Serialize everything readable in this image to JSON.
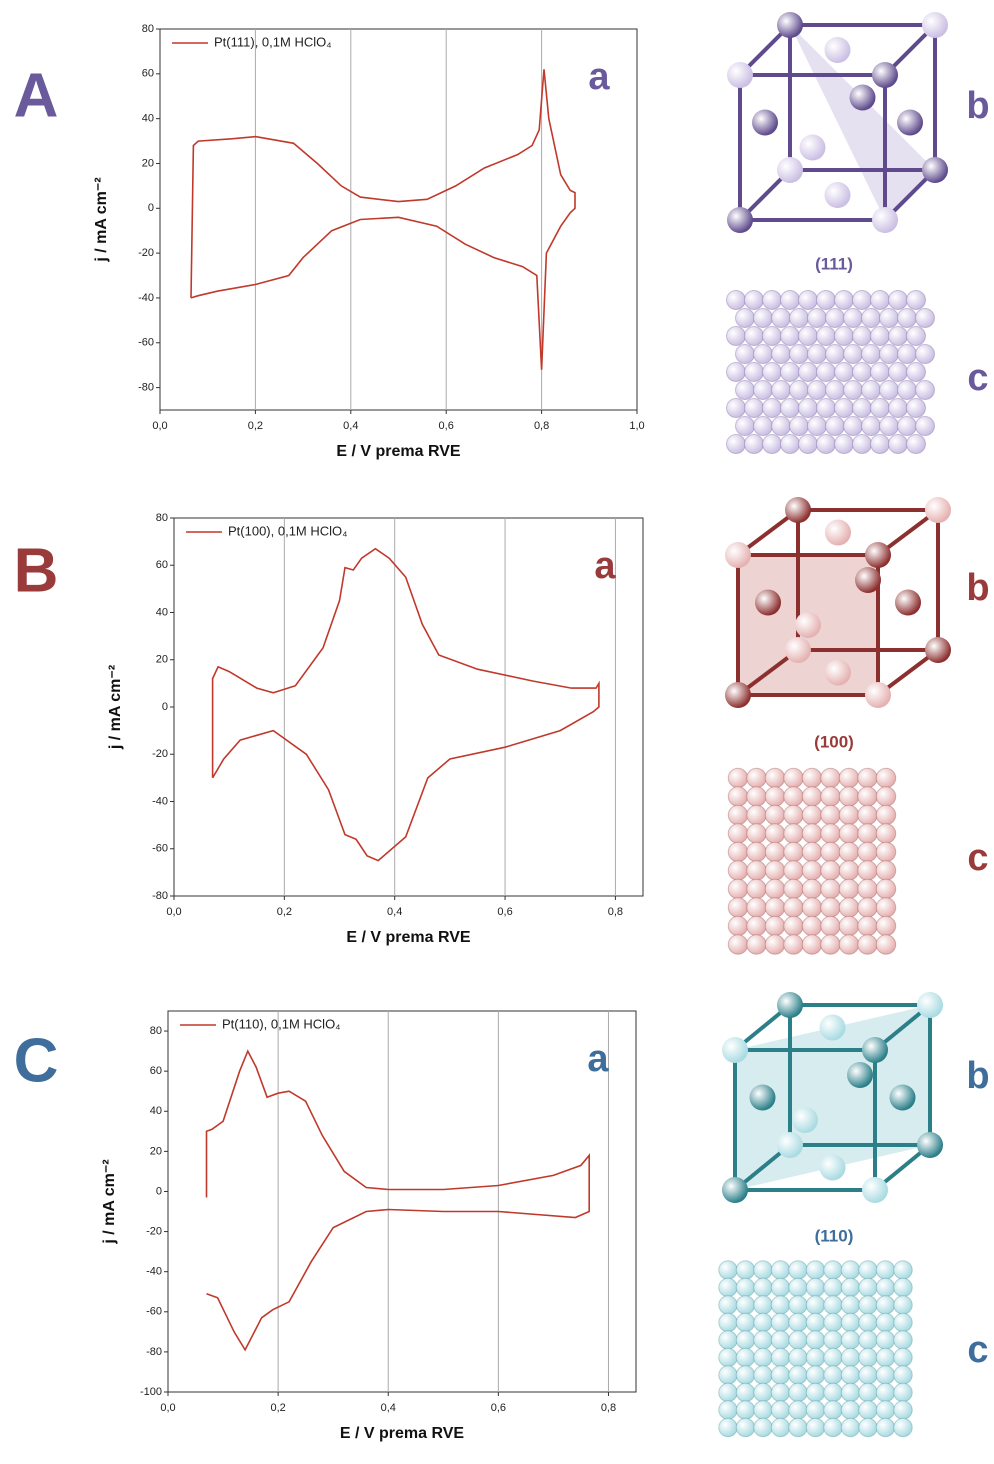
{
  "chart_data": [
    {
      "type": "line",
      "annotation": "a",
      "xlabel": "E / V prema RVE",
      "ylabel": "j / mA cm⁻²",
      "legend": "upper left",
      "grid": "x",
      "xlim": [
        0,
        1
      ],
      "ylim": [
        -90,
        80
      ],
      "xticks": [
        {
          "value": 0,
          "label": "0,0"
        },
        {
          "value": 0.2,
          "label": "0,2"
        },
        {
          "value": 0.4,
          "label": "0,4"
        },
        {
          "value": 0.6,
          "label": "0,6"
        },
        {
          "value": 0.8,
          "label": "0,8"
        },
        {
          "value": 1,
          "label": "1,0"
        }
      ],
      "yticks": [
        -80,
        -60,
        -40,
        -20,
        0,
        20,
        40,
        60,
        80
      ],
      "x": [
        0.065,
        0.07,
        0.08,
        0.15,
        0.2,
        0.28,
        0.33,
        0.38,
        0.42,
        0.5,
        0.56,
        0.62,
        0.68,
        0.75,
        0.78,
        0.795,
        0.805,
        0.815,
        0.84,
        0.86,
        0.87,
        0.87,
        0.86,
        0.84,
        0.81,
        0.8,
        0.79,
        0.76,
        0.7,
        0.64,
        0.58,
        0.5,
        0.42,
        0.36,
        0.3,
        0.27,
        0.2,
        0.12,
        0.08,
        0.065
      ],
      "series": [
        {
          "name": "Pt(111), 0,1M HClO₄",
          "color": "#c0392b",
          "values": [
            -40,
            28,
            30,
            31,
            32,
            29,
            20,
            10,
            5,
            3,
            4,
            10,
            18,
            24,
            28,
            35,
            62,
            40,
            15,
            8,
            7,
            0,
            -2,
            -8,
            -20,
            -72,
            -30,
            -26,
            -22,
            -16,
            -8,
            -4,
            -5,
            -10,
            -22,
            -30,
            -34,
            -37,
            -39,
            -40
          ]
        }
      ]
    },
    {
      "type": "line",
      "annotation": "a",
      "xlabel": "E / V prema RVE",
      "ylabel": "j / mA cm⁻²",
      "legend": "upper left",
      "grid": "x",
      "xlim": [
        0,
        0.85
      ],
      "ylim": [
        -80,
        80
      ],
      "xticks": [
        {
          "value": 0,
          "label": "0,0"
        },
        {
          "value": 0.2,
          "label": "0,2"
        },
        {
          "value": 0.4,
          "label": "0,4"
        },
        {
          "value": 0.6,
          "label": "0,6"
        },
        {
          "value": 0.8,
          "label": "0,8"
        }
      ],
      "yticks": [
        -80,
        -60,
        -40,
        -20,
        0,
        20,
        40,
        60,
        80
      ],
      "x": [
        0.07,
        0.07,
        0.08,
        0.1,
        0.15,
        0.18,
        0.22,
        0.27,
        0.3,
        0.31,
        0.325,
        0.34,
        0.365,
        0.39,
        0.42,
        0.45,
        0.48,
        0.55,
        0.65,
        0.72,
        0.765,
        0.77,
        0.77,
        0.76,
        0.7,
        0.6,
        0.5,
        0.46,
        0.42,
        0.37,
        0.35,
        0.33,
        0.31,
        0.28,
        0.24,
        0.18,
        0.12,
        0.09,
        0.07
      ],
      "series": [
        {
          "name": "Pt(100), 0,1M HClO₄",
          "color": "#c0392b",
          "values": [
            -30,
            12,
            17,
            15,
            8,
            6,
            9,
            25,
            45,
            59,
            58,
            63,
            67,
            63,
            55,
            35,
            22,
            16,
            11,
            8,
            8,
            10,
            0,
            -2,
            -10,
            -17,
            -22,
            -30,
            -55,
            -65,
            -63,
            -56,
            -54,
            -35,
            -20,
            -10,
            -14,
            -22,
            -30
          ]
        }
      ]
    },
    {
      "type": "line",
      "annotation": "a",
      "xlabel": "E / V prema RVE",
      "ylabel": "j / mA cm⁻²",
      "legend": "upper left",
      "grid": "x",
      "xlim": [
        0,
        0.85
      ],
      "ylim": [
        -100,
        90
      ],
      "xticks": [
        {
          "value": 0,
          "label": "0,0"
        },
        {
          "value": 0.2,
          "label": "0,2"
        },
        {
          "value": 0.4,
          "label": "0,4"
        },
        {
          "value": 0.6,
          "label": "0,6"
        },
        {
          "value": 0.8,
          "label": "0,8"
        }
      ],
      "yticks": [
        -100,
        -80,
        -60,
        -40,
        -20,
        0,
        20,
        40,
        60,
        80
      ],
      "x": [
        0.07,
        0.07,
        0.08,
        0.1,
        0.13,
        0.145,
        0.16,
        0.18,
        0.2,
        0.22,
        0.25,
        0.28,
        0.32,
        0.36,
        0.4,
        0.5,
        0.6,
        0.7,
        0.75,
        0.765,
        0.765,
        0.74,
        0.6,
        0.5,
        0.4,
        0.36,
        0.3,
        0.26,
        0.22,
        0.19,
        0.17,
        0.14,
        0.12,
        0.09,
        0.07
      ],
      "series": [
        {
          "name": "Pt(110), 0,1M HClO₄",
          "color": "#c0392b",
          "values": [
            -3,
            30,
            31,
            35,
            60,
            70,
            62,
            47,
            49,
            50,
            45,
            28,
            10,
            2,
            1,
            1,
            3,
            8,
            13,
            18,
            -10,
            -13,
            -10,
            -10,
            -9,
            -10,
            -18,
            -35,
            -55,
            -59,
            -63,
            -79,
            -70,
            -53,
            -51
          ]
        }
      ]
    }
  ],
  "figure": {
    "panels": [
      {
        "letter": "A",
        "b": "b",
        "c": "c",
        "facet": "(111)",
        "color": "#6a5a9c"
      },
      {
        "letter": "B",
        "b": "b",
        "c": "c",
        "facet": "(100)",
        "color": "#9a3b3b"
      },
      {
        "letter": "C",
        "b": "b",
        "c": "c",
        "facet": "(110)",
        "color": "#3f6d9c"
      }
    ]
  }
}
